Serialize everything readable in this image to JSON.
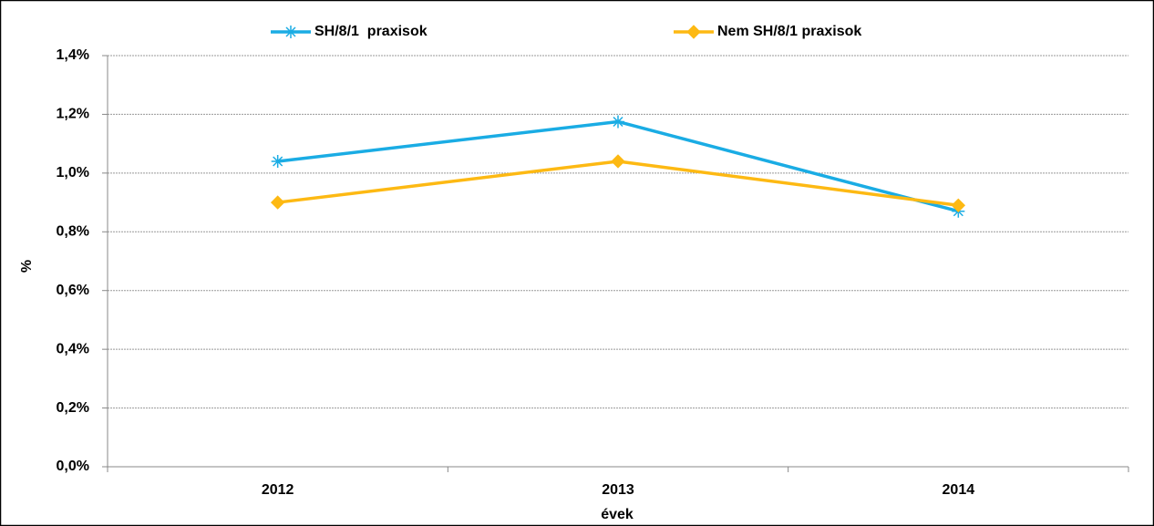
{
  "chart_data": {
    "type": "line",
    "categories": [
      "2012",
      "2013",
      "2014"
    ],
    "series": [
      {
        "name": "SH/8/1  praxisok",
        "color": "#1aace4",
        "marker": "star",
        "values": [
          1.04,
          1.175,
          0.87
        ]
      },
      {
        "name": "Nem SH/8/1 praxisok",
        "color": "#fdb913",
        "marker": "diamond",
        "values": [
          0.9,
          1.04,
          0.89
        ]
      }
    ],
    "xlabel": "évek",
    "ylabel": "%",
    "ylim": [
      0,
      1.4
    ],
    "yticks": [
      {
        "value": 0,
        "label": "0,0%"
      },
      {
        "value": 0.2,
        "label": "0,2%"
      },
      {
        "value": 0.4,
        "label": "0,4%"
      },
      {
        "value": 0.6,
        "label": "0,6%"
      },
      {
        "value": 0.8,
        "label": "0,8%"
      },
      {
        "value": 1.0,
        "label": "1,0%"
      },
      {
        "value": 1.2,
        "label": "1,2%"
      },
      {
        "value": 1.4,
        "label": "1,4%"
      }
    ],
    "grid": true,
    "legend": "top"
  }
}
